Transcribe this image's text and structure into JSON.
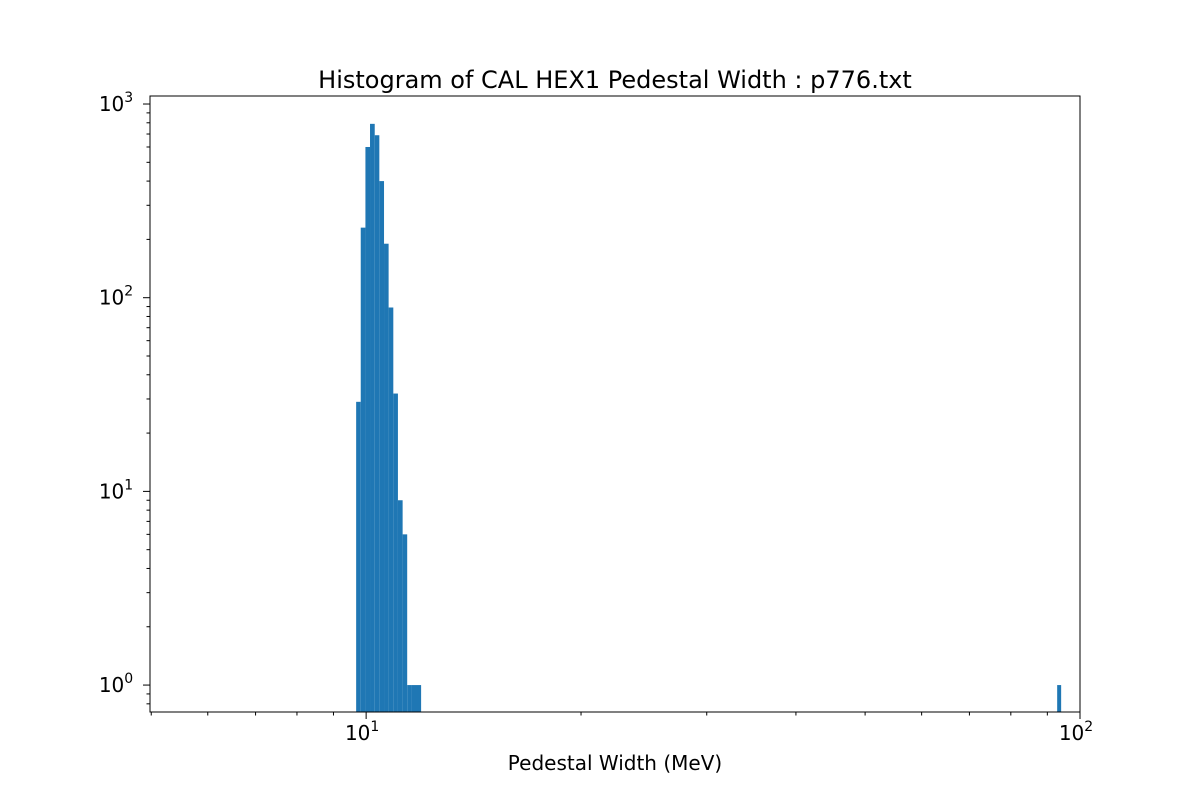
{
  "chart_data": {
    "type": "bar",
    "title": "Histogram of CAL HEX1 Pedestal Width : p776.txt",
    "xlabel": "Pedestal Width (MeV)",
    "ylabel": "",
    "xscale": "log",
    "yscale": "log",
    "xlim": [
      4.98,
      100
    ],
    "ylim": [
      0.726,
      1100
    ],
    "grid": false,
    "color": "#1f77b4",
    "x_ticks": [
      {
        "value": 10,
        "label": "10",
        "exp": "1"
      },
      {
        "value": 100,
        "label": "10",
        "exp": "2"
      }
    ],
    "y_ticks": [
      {
        "value": 1,
        "label": "10",
        "exp": "0"
      },
      {
        "value": 10,
        "label": "10",
        "exp": "1"
      },
      {
        "value": 100,
        "label": "10",
        "exp": "2"
      },
      {
        "value": 1000,
        "label": "10",
        "exp": "3"
      }
    ],
    "bins": [
      {
        "x0": 9.683,
        "x1": 9.827,
        "count": 29
      },
      {
        "x0": 9.827,
        "x1": 9.977,
        "count": 230
      },
      {
        "x0": 9.977,
        "x1": 10.126,
        "count": 600
      },
      {
        "x0": 10.126,
        "x1": 10.281,
        "count": 790
      },
      {
        "x0": 10.281,
        "x1": 10.435,
        "count": 690
      },
      {
        "x0": 10.435,
        "x1": 10.594,
        "count": 400
      },
      {
        "x0": 10.594,
        "x1": 10.752,
        "count": 190
      },
      {
        "x0": 10.752,
        "x1": 10.916,
        "count": 89
      },
      {
        "x0": 10.916,
        "x1": 11.08,
        "count": 32
      },
      {
        "x0": 11.08,
        "x1": 11.249,
        "count": 9
      },
      {
        "x0": 11.249,
        "x1": 11.416,
        "count": 6
      },
      {
        "x0": 11.416,
        "x1": 11.591,
        "count": 1
      },
      {
        "x0": 11.591,
        "x1": 11.764,
        "count": 1
      },
      {
        "x0": 11.764,
        "x1": 11.94,
        "count": 1
      },
      {
        "x0": 92.9,
        "x1": 94.1,
        "count": 1
      }
    ]
  }
}
